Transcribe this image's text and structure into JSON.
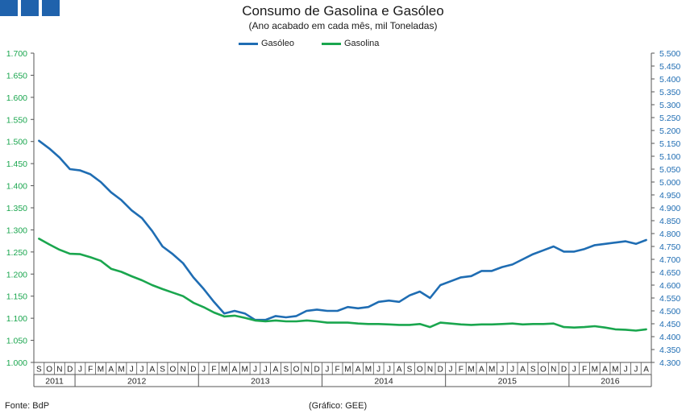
{
  "header": {
    "title": "Consumo de Gasolina e Gasóleo",
    "subtitle": "(Ano acabado em cada mês,  mil Toneladas)"
  },
  "footer": {
    "source": "Fonte: BdP",
    "credit": "(Gráfico: GEE)"
  },
  "colors": {
    "gasoleo": "#1f6db3",
    "gasolina": "#1aa64e",
    "axis": "#555555",
    "logo": "#1f62ac"
  },
  "chart_data": {
    "type": "line",
    "title": "Consumo de Gasolina e Gasóleo",
    "subtitle": "(Ano acabado em cada mês,  mil Toneladas)",
    "legend_position": "top-center",
    "grid": false,
    "x_month_labels": [
      "S",
      "O",
      "N",
      "D",
      "J",
      "F",
      "M",
      "A",
      "M",
      "J",
      "J",
      "A",
      "S",
      "O",
      "N",
      "D",
      "J",
      "F",
      "M",
      "A",
      "M",
      "J",
      "J",
      "A",
      "S",
      "O",
      "N",
      "D",
      "J",
      "F",
      "M",
      "A",
      "M",
      "J",
      "J",
      "A",
      "S",
      "O",
      "N",
      "D",
      "J",
      "F",
      "M",
      "A",
      "M",
      "J",
      "J",
      "A",
      "S",
      "O",
      "N",
      "D",
      "J",
      "F",
      "M",
      "A",
      "M",
      "J",
      "J",
      "A"
    ],
    "x_year_groups": [
      {
        "label": "2011",
        "count": 4
      },
      {
        "label": "2012",
        "count": 12
      },
      {
        "label": "2013",
        "count": 12
      },
      {
        "label": "2014",
        "count": 12
      },
      {
        "label": "2015",
        "count": 12
      },
      {
        "label": "2016",
        "count": 8
      }
    ],
    "y_left": {
      "min": 1.0,
      "max": 1.7,
      "ticks": [
        "1.000",
        "1.050",
        "1.100",
        "1.150",
        "1.200",
        "1.250",
        "1.300",
        "1.350",
        "1.400",
        "1.450",
        "1.500",
        "1.550",
        "1.600",
        "1.650",
        "1.700"
      ]
    },
    "y_right": {
      "min": 4.3,
      "max": 5.5,
      "ticks": [
        "4.300",
        "4.350",
        "4.400",
        "4.450",
        "4.500",
        "4.550",
        "4.600",
        "4.650",
        "4.700",
        "4.750",
        "4.800",
        "4.850",
        "4.900",
        "4.950",
        "5.000",
        "5.050",
        "5.100",
        "5.150",
        "5.200",
        "5.250",
        "5.300",
        "5.350",
        "5.400",
        "5.450",
        "5.500"
      ]
    },
    "series": [
      {
        "name": "Gasóleo",
        "axis": "right",
        "values": [
          5.16,
          5.13,
          5.095,
          5.05,
          5.045,
          5.03,
          5.0,
          4.96,
          4.93,
          4.89,
          4.86,
          4.81,
          4.75,
          4.72,
          4.685,
          4.63,
          4.585,
          4.535,
          4.49,
          4.5,
          4.49,
          4.465,
          4.465,
          4.48,
          4.475,
          4.48,
          4.5,
          4.505,
          4.5,
          4.5,
          4.515,
          4.51,
          4.515,
          4.535,
          4.54,
          4.535,
          4.56,
          4.575,
          4.55,
          4.6,
          4.615,
          4.63,
          4.635,
          4.655,
          4.655,
          4.67,
          4.68,
          4.7,
          4.72,
          4.735,
          4.75,
          4.73,
          4.73,
          4.74,
          4.755,
          4.76,
          4.765,
          4.77,
          4.76,
          4.775
        ]
      },
      {
        "name": "Gasolina",
        "axis": "left",
        "values": [
          1.28,
          1.267,
          1.255,
          1.246,
          1.245,
          1.238,
          1.23,
          1.212,
          1.205,
          1.195,
          1.186,
          1.175,
          1.166,
          1.158,
          1.15,
          1.135,
          1.125,
          1.113,
          1.104,
          1.106,
          1.101,
          1.095,
          1.093,
          1.095,
          1.093,
          1.093,
          1.095,
          1.093,
          1.09,
          1.09,
          1.09,
          1.088,
          1.087,
          1.087,
          1.086,
          1.085,
          1.085,
          1.087,
          1.08,
          1.09,
          1.088,
          1.086,
          1.085,
          1.086,
          1.086,
          1.087,
          1.088,
          1.086,
          1.087,
          1.087,
          1.088,
          1.08,
          1.079,
          1.08,
          1.082,
          1.079,
          1.075,
          1.074,
          1.072,
          1.075
        ]
      }
    ]
  }
}
